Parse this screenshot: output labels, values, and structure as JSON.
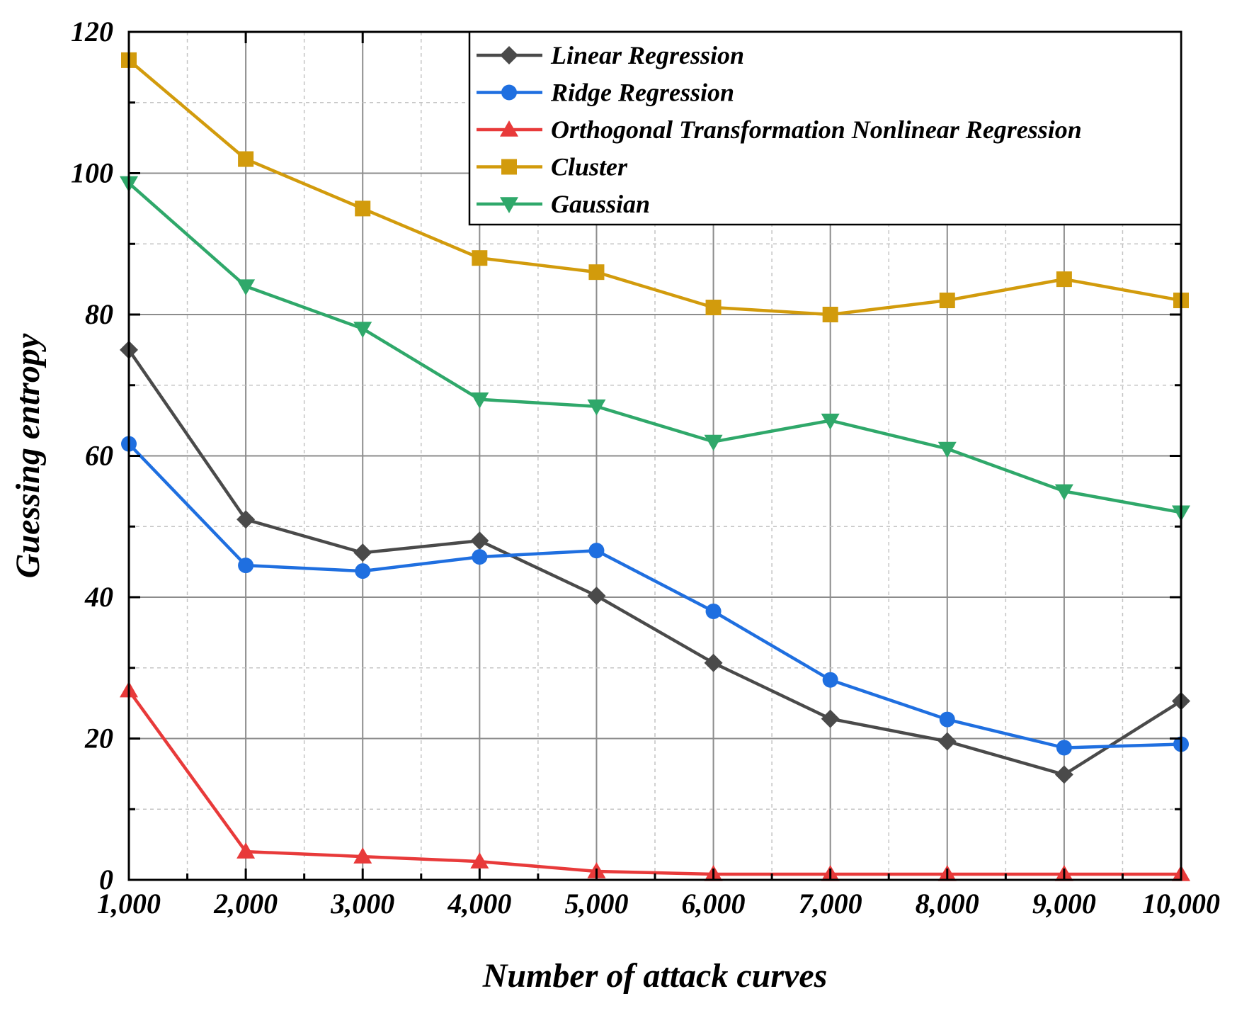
{
  "chart_data": {
    "type": "line",
    "title": "",
    "xlabel": "Number of attack curves",
    "ylabel": "Guessing entropy",
    "x": [
      1000,
      2000,
      3000,
      4000,
      5000,
      6000,
      7000,
      8000,
      9000,
      10000
    ],
    "x_tick_labels": [
      "1,000",
      "2,000",
      "3,000",
      "4,000",
      "5,000",
      "6,000",
      "7,000",
      "8,000",
      "9,000",
      "10,000"
    ],
    "xlim": [
      1000,
      10000
    ],
    "ylim": [
      0,
      120
    ],
    "y_ticks": [
      0,
      20,
      40,
      60,
      80,
      100,
      120
    ],
    "y_tick_labels": [
      "0",
      "20",
      "40",
      "60",
      "80",
      "100",
      "120"
    ],
    "grid": true,
    "legend_position": "top-right",
    "series": [
      {
        "name": "Linear Regression",
        "color": "#4a4a4a",
        "marker": "diamond",
        "values": [
          75,
          51,
          46.3,
          48,
          40.2,
          30.7,
          22.8,
          19.6,
          14.9,
          25.3
        ]
      },
      {
        "name": "Ridge Regression",
        "color": "#1f6fe0",
        "marker": "circle",
        "values": [
          61.7,
          44.5,
          43.7,
          45.7,
          46.6,
          38,
          28.3,
          22.7,
          18.7,
          19.2
        ]
      },
      {
        "name": "Orthogonal Transformation Nonlinear Regression",
        "color": "#e83a3a",
        "marker": "triangle-up",
        "values": [
          26.8,
          4,
          3.3,
          2.6,
          1.2,
          0.8,
          0.8,
          0.8,
          0.8,
          0.8
        ]
      },
      {
        "name": "Cluster",
        "color": "#d29b0c",
        "marker": "square",
        "values": [
          116,
          102,
          95,
          88,
          86,
          81,
          80,
          82,
          85,
          82
        ]
      },
      {
        "name": "Gaussian",
        "color": "#2fa86a",
        "marker": "triangle-down",
        "values": [
          98.6,
          84,
          78,
          68,
          67,
          62,
          65,
          61,
          55,
          52
        ]
      }
    ]
  }
}
